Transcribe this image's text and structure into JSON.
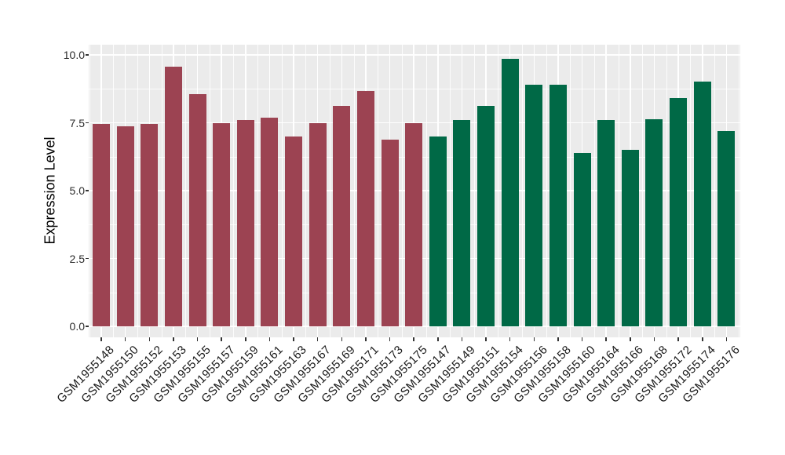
{
  "figure": {
    "background": "#FFFFFF",
    "panel_background": "#EBEBEB",
    "gridline_color": "#FFFFFF",
    "tick_color": "#333333"
  },
  "chart_data": {
    "type": "bar",
    "title": "",
    "xlabel": "",
    "ylabel": "Expression Level",
    "ylim": [
      0,
      10.4
    ],
    "yticks": [
      0,
      2.5,
      5,
      7.5,
      10
    ],
    "ytick_labels": [
      "0.0",
      "2.5",
      "5.0",
      "7.5",
      "10.0"
    ],
    "yminor_ticks": [
      1.25,
      3.75,
      6.25,
      8.75
    ],
    "grid": "white major and minor gridlines on gray panel",
    "legend_position": "none",
    "colors": {
      "maroon": "#9C4352",
      "green": "#006946"
    },
    "categories": [
      "GSM1955148",
      "GSM1955150",
      "GSM1955152",
      "GSM1955153",
      "GSM1955155",
      "GSM1955157",
      "GSM1955159",
      "GSM1955161",
      "GSM1955163",
      "GSM1955167",
      "GSM1955169",
      "GSM1955171",
      "GSM1955173",
      "GSM1955175",
      "GSM1955147",
      "GSM1955149",
      "GSM1955151",
      "GSM1955154",
      "GSM1955156",
      "GSM1955158",
      "GSM1955160",
      "GSM1955164",
      "GSM1955166",
      "GSM1955168",
      "GSM1955172",
      "GSM1955174",
      "GSM1955176"
    ],
    "values": [
      7.45,
      7.37,
      7.47,
      9.58,
      8.55,
      7.5,
      7.6,
      7.68,
      7.0,
      7.5,
      8.12,
      8.68,
      6.88,
      7.5,
      7.0,
      7.6,
      8.12,
      9.85,
      8.9,
      8.9,
      6.4,
      7.6,
      6.5,
      7.62,
      8.4,
      9.02,
      7.2
    ],
    "bar_colors": [
      "#9C4352",
      "#9C4352",
      "#9C4352",
      "#9C4352",
      "#9C4352",
      "#9C4352",
      "#9C4352",
      "#9C4352",
      "#9C4352",
      "#9C4352",
      "#9C4352",
      "#9C4352",
      "#9C4352",
      "#9C4352",
      "#006946",
      "#006946",
      "#006946",
      "#006946",
      "#006946",
      "#006946",
      "#006946",
      "#006946",
      "#006946",
      "#006946",
      "#006946",
      "#006946",
      "#006946"
    ]
  }
}
